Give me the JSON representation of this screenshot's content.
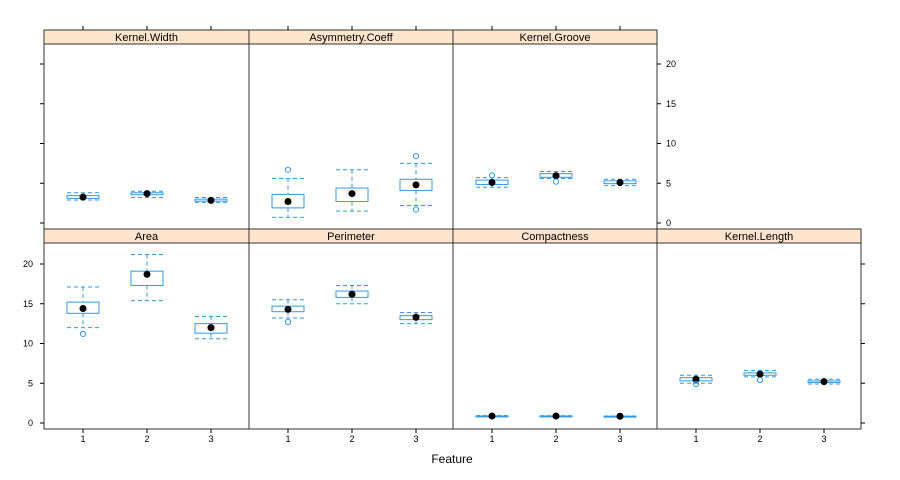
{
  "chart_data": {
    "type": "box",
    "xlabel": "Feature",
    "categories": [
      "1",
      "2",
      "3"
    ],
    "ylim": [
      0,
      23
    ],
    "yticks": [
      0,
      5,
      10,
      15,
      20
    ],
    "colors": {
      "box": "#3399e0",
      "strip": "#ffe5cc",
      "border": "#333333",
      "median_dot": "#000000"
    },
    "panels": [
      {
        "name": "Kernel.Width",
        "boxes": [
          {
            "category": "1",
            "whisker_low": 2.9,
            "q1": 3.1,
            "median": 3.25,
            "q3": 3.45,
            "whisker_high": 3.8,
            "outliers": []
          },
          {
            "category": "2",
            "whisker_low": 3.2,
            "q1": 3.55,
            "median": 3.7,
            "q3": 3.8,
            "whisker_high": 4.0,
            "outliers": []
          },
          {
            "category": "3",
            "whisker_low": 2.6,
            "q1": 2.75,
            "median": 2.85,
            "q3": 3.0,
            "whisker_high": 3.2,
            "outliers": []
          }
        ]
      },
      {
        "name": "Asymmetry.Coeff",
        "boxes": [
          {
            "category": "1",
            "whisker_low": 0.7,
            "q1": 1.9,
            "median": 2.7,
            "q3": 3.6,
            "whisker_high": 5.6,
            "outliers": [
              6.7
            ]
          },
          {
            "category": "2",
            "whisker_low": 1.5,
            "q1": 2.7,
            "median": 3.7,
            "q3": 4.4,
            "whisker_high": 6.7,
            "outliers": []
          },
          {
            "category": "3",
            "whisker_low": 2.2,
            "q1": 4.1,
            "median": 4.8,
            "q3": 5.5,
            "whisker_high": 7.5,
            "outliers": [
              8.4,
              1.7
            ]
          }
        ]
      },
      {
        "name": "Kernel.Groove",
        "boxes": [
          {
            "category": "1",
            "whisker_low": 4.5,
            "q1": 4.85,
            "median": 5.1,
            "q3": 5.4,
            "whisker_high": 5.7,
            "outliers": [
              6.0
            ]
          },
          {
            "category": "2",
            "whisker_low": 5.6,
            "q1": 5.75,
            "median": 5.95,
            "q3": 6.2,
            "whisker_high": 6.5,
            "outliers": [
              5.2
            ]
          },
          {
            "category": "3",
            "whisker_low": 4.7,
            "q1": 4.95,
            "median": 5.1,
            "q3": 5.3,
            "whisker_high": 5.5,
            "outliers": []
          }
        ]
      },
      {
        "name": "Area",
        "boxes": [
          {
            "category": "1",
            "whisker_low": 12.0,
            "q1": 13.8,
            "median": 14.4,
            "q3": 15.2,
            "whisker_high": 17.1,
            "outliers": [
              11.2
            ]
          },
          {
            "category": "2",
            "whisker_low": 15.4,
            "q1": 17.3,
            "median": 18.7,
            "q3": 19.1,
            "whisker_high": 21.2,
            "outliers": []
          },
          {
            "category": "3",
            "whisker_low": 10.6,
            "q1": 11.3,
            "median": 12.0,
            "q3": 12.5,
            "whisker_high": 13.4,
            "outliers": []
          }
        ]
      },
      {
        "name": "Perimeter",
        "boxes": [
          {
            "category": "1",
            "whisker_low": 13.2,
            "q1": 14.0,
            "median": 14.3,
            "q3": 14.7,
            "whisker_high": 15.5,
            "outliers": [
              12.7
            ]
          },
          {
            "category": "2",
            "whisker_low": 15.0,
            "q1": 15.8,
            "median": 16.2,
            "q3": 16.6,
            "whisker_high": 17.3,
            "outliers": []
          },
          {
            "category": "3",
            "whisker_low": 12.5,
            "q1": 13.0,
            "median": 13.3,
            "q3": 13.5,
            "whisker_high": 13.9,
            "outliers": []
          }
        ]
      },
      {
        "name": "Compactness",
        "boxes": [
          {
            "category": "1",
            "whisker_low": 0.84,
            "q1": 0.87,
            "median": 0.88,
            "q3": 0.89,
            "whisker_high": 0.92,
            "outliers": []
          },
          {
            "category": "2",
            "whisker_low": 0.84,
            "q1": 0.87,
            "median": 0.88,
            "q3": 0.89,
            "whisker_high": 0.91,
            "outliers": []
          },
          {
            "category": "3",
            "whisker_low": 0.81,
            "q1": 0.84,
            "median": 0.85,
            "q3": 0.86,
            "whisker_high": 0.88,
            "outliers": []
          }
        ]
      },
      {
        "name": "Kernel.Length",
        "boxes": [
          {
            "category": "1",
            "whisker_low": 5.0,
            "q1": 5.3,
            "median": 5.5,
            "q3": 5.7,
            "whisker_high": 6.0,
            "outliers": [
              4.9
            ]
          },
          {
            "category": "2",
            "whisker_low": 5.8,
            "q1": 6.0,
            "median": 6.15,
            "q3": 6.3,
            "whisker_high": 6.6,
            "outliers": [
              5.4
            ]
          },
          {
            "category": "3",
            "whisker_low": 4.9,
            "q1": 5.1,
            "median": 5.2,
            "q3": 5.3,
            "whisker_high": 5.5,
            "outliers": []
          }
        ]
      }
    ]
  }
}
